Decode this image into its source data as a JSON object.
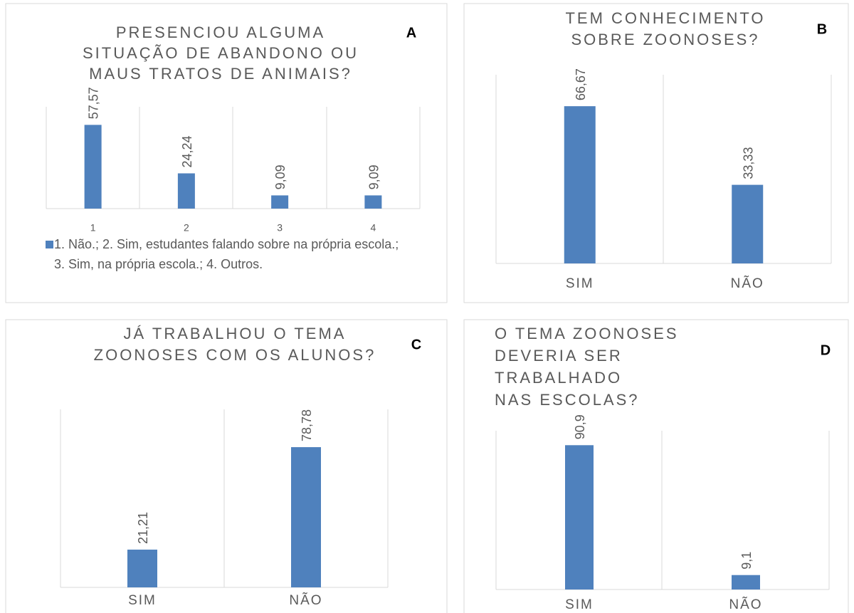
{
  "chart_data": [
    {
      "type": "bar",
      "label": "A",
      "title": [
        "PRESENCIOU ALGUMA",
        "SITUAÇÃO DE ABANDONO OU",
        "MAUS TRATOS DE ANIMAIS?"
      ],
      "categories": [
        "1",
        "2",
        "3",
        "4"
      ],
      "series": [
        {
          "name": "1. Não.; 2. Sim, estudantes falando sobre na própria escola.; 3. Sim, na própria escola.; 4. Outros.",
          "color": "#4f81bd",
          "values": [
            57.57,
            24.24,
            9.09,
            9.09
          ],
          "value_labels": [
            "57,57",
            "24,24",
            "9,09",
            "9,09"
          ]
        }
      ],
      "ylim": [
        0,
        70
      ],
      "legend": "bottom"
    },
    {
      "type": "bar",
      "label": "B",
      "title": [
        "TEM CONHECIMENTO",
        "SOBRE ZOONOSES?"
      ],
      "categories": [
        "SIM",
        "NÃO"
      ],
      "series": [
        {
          "color": "#4f81bd",
          "values": [
            66.67,
            33.33
          ],
          "value_labels": [
            "66,67",
            "33,33"
          ]
        }
      ],
      "ylim": [
        0,
        80
      ]
    },
    {
      "type": "bar",
      "label": "C",
      "title": [
        "JÁ TRABALHOU O TEMA",
        "ZOONOSES COM OS ALUNOS?"
      ],
      "categories": [
        "SIM",
        "NÃO"
      ],
      "series": [
        {
          "color": "#4f81bd",
          "values": [
            21.21,
            78.78
          ],
          "value_labels": [
            "21,21",
            "78,78"
          ]
        }
      ],
      "ylim": [
        0,
        100
      ]
    },
    {
      "type": "bar",
      "label": "D",
      "title": [
        "O TEMA ZOONOSES",
        "DEVERIA SER",
        "TRABALHADO",
        "NAS ESCOLAS?"
      ],
      "categories": [
        "SIM",
        "NÃO"
      ],
      "series": [
        {
          "color": "#4f81bd",
          "values": [
            90.9,
            9.1
          ],
          "value_labels": [
            "90,9",
            "9,1"
          ]
        }
      ],
      "ylim": [
        0,
        100
      ]
    }
  ]
}
